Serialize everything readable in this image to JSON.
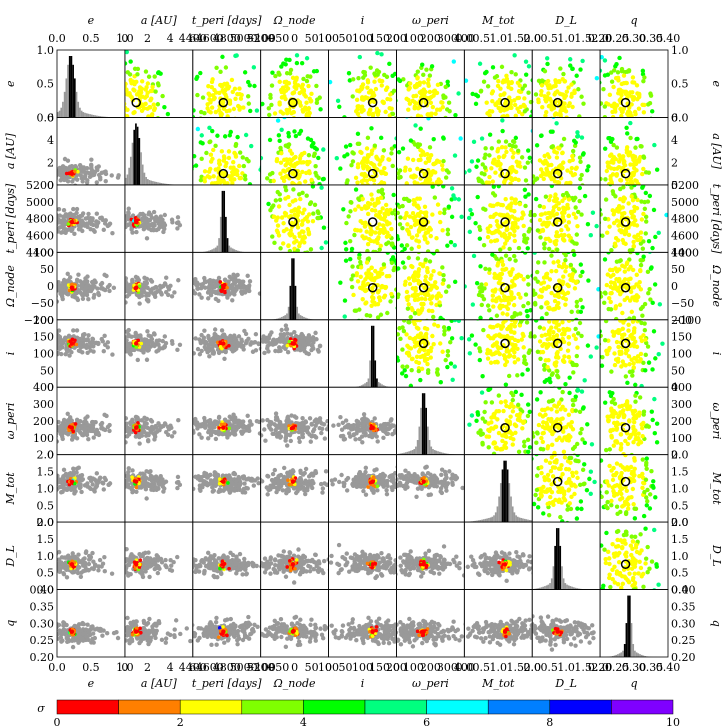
{
  "chart_data": {
    "type": "scatter",
    "title": "",
    "description_type": "corner plot (triangle plot) of posterior samples",
    "parameters": [
      {
        "key": "e",
        "label": "e",
        "range": [
          0.0,
          1.0
        ],
        "ticks": [
          0.0,
          0.5,
          1.0
        ],
        "tick_labels": [
          "0.0",
          "0.5",
          "1.0"
        ],
        "best_fit": 0.22
      },
      {
        "key": "a",
        "label": "a [AU]",
        "range": [
          0,
          6
        ],
        "ticks": [
          0,
          2,
          4,
          6
        ],
        "tick_labels": [
          "0",
          "2",
          "4",
          "6"
        ],
        "best_fit": 1.0
      },
      {
        "key": "t_peri",
        "label": "t_peri [days]",
        "range": [
          4400,
          5200
        ],
        "ticks": [
          4400,
          4600,
          4800,
          5000,
          5200
        ],
        "tick_labels": [
          "4400",
          "4600",
          "4800",
          "5000",
          "5200"
        ],
        "best_fit": 4760
      },
      {
        "key": "omega_node",
        "label": "Ω_node",
        "range": [
          -100,
          100
        ],
        "ticks": [
          -100,
          -50,
          0,
          50,
          100
        ],
        "tick_labels": [
          "−100",
          "−50",
          "0",
          "50",
          "100"
        ],
        "best_fit": -5
      },
      {
        "key": "i",
        "label": "i",
        "range": [
          0,
          200
        ],
        "ticks": [
          0,
          50,
          100,
          150,
          200
        ],
        "tick_labels": [
          "0",
          "50",
          "100",
          "150",
          "200"
        ],
        "best_fit": 130
      },
      {
        "key": "omega_peri",
        "label": "ω_peri",
        "range": [
          0,
          400
        ],
        "ticks": [
          0,
          100,
          200,
          300,
          400
        ],
        "tick_labels": [
          "0",
          "100",
          "200",
          "300",
          "400"
        ],
        "best_fit": 160
      },
      {
        "key": "M_tot",
        "label": "M_tot",
        "range": [
          0.0,
          2.0
        ],
        "ticks": [
          0.0,
          0.5,
          1.0,
          1.5,
          2.0
        ],
        "tick_labels": [
          "0.0",
          "0.5",
          "1.0",
          "1.5",
          "2.0"
        ],
        "best_fit": 1.2
      },
      {
        "key": "D_L",
        "label": "D_L",
        "range": [
          0.0,
          2.0
        ],
        "ticks": [
          0.0,
          0.5,
          1.0,
          1.5,
          2.0
        ],
        "tick_labels": [
          "0.0",
          "0.5",
          "1.0",
          "1.5",
          "2.0"
        ],
        "best_fit": 0.75
      },
      {
        "key": "q",
        "label": "q",
        "range": [
          0.2,
          0.4
        ],
        "ticks": [
          0.2,
          0.25,
          0.3,
          0.35,
          0.4
        ],
        "tick_labels": [
          "0.20",
          "0.25",
          "0.30",
          "0.35",
          "0.40"
        ],
        "best_fit": 0.275
      }
    ],
    "marginal_histograms": {
      "e": {
        "peak": 0.2,
        "width": 0.06
      },
      "a": {
        "peak": 1.0,
        "width": 0.35
      },
      "t_peri": {
        "peak": 4760,
        "width": 25
      },
      "omega_node": {
        "peak": -5,
        "width": 6
      },
      "i": {
        "peak": 130,
        "width": 5
      },
      "omega_peri": {
        "peak": 160,
        "width": 18
      },
      "M_tot": {
        "peak": 1.2,
        "width": 0.12
      },
      "D_L": {
        "peak": 0.75,
        "width": 0.08
      },
      "q": {
        "peak": 0.285,
        "width": 0.006
      }
    },
    "colorbar": {
      "label": "σ",
      "ticks": [
        0,
        2,
        4,
        6,
        8,
        10
      ],
      "tick_labels": [
        "0",
        "2",
        "4",
        "6",
        "8",
        "10"
      ],
      "colors": [
        "#ff0000",
        "#ff7f00",
        "#ffff00",
        "#7fff00",
        "#00ff00",
        "#00ff7f",
        "#00ffff",
        "#007fff",
        "#0000ff",
        "#7f00ff",
        "#ff00ff"
      ]
    },
    "colors": {
      "scatter_gray": "#999999",
      "marker_red": "#ff0000",
      "best_fit_circle": "#000000"
    },
    "grid": false,
    "legend": "none"
  }
}
